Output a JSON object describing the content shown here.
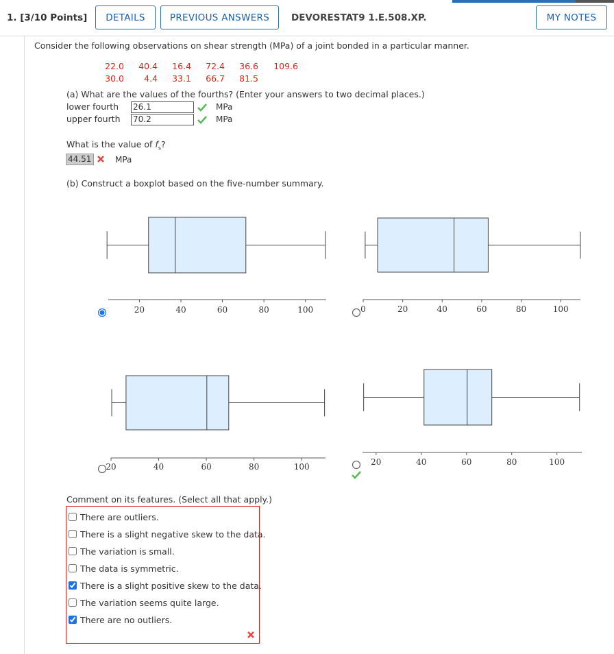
{
  "header": {
    "question_label": "1. [3/10 Points]",
    "buttons": [
      "DETAILS",
      "PREVIOUS ANSWERS"
    ],
    "source": "DEVORESTAT9 1.E.508.XP.",
    "notes_button": "MY NOTES"
  },
  "prompt": "Consider the following observations on shear strength (MPa) of a joint bonded in a particular manner.",
  "observations": [
    [
      "22.0",
      "40.4",
      "16.4",
      "72.4",
      "36.6",
      "109.6"
    ],
    [
      "30.0",
      "4.4",
      "33.1",
      "66.7",
      "81.5"
    ]
  ],
  "part_a": {
    "question": "(a) What are the values of the fourths? (Enter your answers to two decimal places.)",
    "answers": [
      {
        "label": "lower fourth",
        "value": "26.1",
        "unit": "MPa",
        "status": "correct"
      },
      {
        "label": "upper fourth",
        "value": "70.2",
        "unit": "MPa",
        "status": "correct"
      }
    ],
    "fs_question": {
      "text": "What is the value of ",
      "var": "f",
      "sub": "s",
      "end": "?"
    },
    "fs_answer": {
      "value": "44.51",
      "unit": "MPa",
      "status": "incorrect"
    }
  },
  "part_b": {
    "question": "(b) Construct a boxplot based on the five-number summary.",
    "boxplots": [
      {
        "xlim": [
          5,
          110
        ],
        "xticks": [
          20,
          40,
          60,
          80,
          100
        ],
        "min": 4.4,
        "q1": 24.4,
        "median": 37.3,
        "q3": 71.3,
        "max": 109.6,
        "selected": true,
        "status": null
      },
      {
        "xlim": [
          0,
          110
        ],
        "xticks": [
          0,
          20,
          40,
          60,
          80,
          100
        ],
        "min": 1,
        "q1": 7.3,
        "median": 46,
        "q3": 63.3,
        "max": 110,
        "selected": false,
        "status": null
      },
      {
        "xlim": [
          20,
          110
        ],
        "xticks": [
          20,
          40,
          60,
          80,
          100
        ],
        "min": 20.3,
        "q1": 26.3,
        "median": 60.2,
        "q3": 69.4,
        "max": 109.6,
        "selected": false,
        "status": null
      },
      {
        "xlim": [
          14,
          111
        ],
        "xticks": [
          20,
          40,
          60,
          80,
          100
        ],
        "min": 14.5,
        "q1": 41.2,
        "median": 60.3,
        "q3": 71.2,
        "max": 110,
        "selected": false,
        "status": "correct"
      }
    ],
    "comment_question": "Comment on its features. (Select all that apply.)",
    "options": [
      {
        "text": "There are outliers.",
        "checked": false
      },
      {
        "text": "There is a slight negative skew to the data.",
        "checked": false
      },
      {
        "text": "The variation is small.",
        "checked": false
      },
      {
        "text": "The data is symmetric.",
        "checked": false
      },
      {
        "text": "There is a slight positive skew to the data.",
        "checked": true
      },
      {
        "text": "The variation seems quite large.",
        "checked": false
      },
      {
        "text": "There are no outliers.",
        "checked": true
      }
    ],
    "options_status": "incorrect"
  }
}
